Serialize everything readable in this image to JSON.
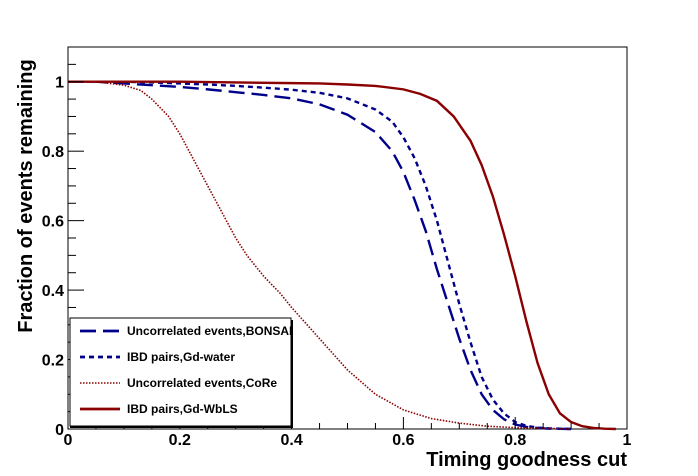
{
  "chart_data": {
    "type": "line",
    "title": "",
    "xlabel": "Timing goodness cut",
    "ylabel": "Fraction of events remaining",
    "xlim": [
      0,
      1
    ],
    "ylim": [
      0,
      1.1
    ],
    "x_ticks": [
      0,
      0.2,
      0.4,
      0.6,
      0.8,
      1
    ],
    "x_tick_labels": [
      "0",
      "0.2",
      "0.4",
      "0.6",
      "0.8",
      "1"
    ],
    "y_ticks": [
      0,
      0.2,
      0.4,
      0.6,
      0.8,
      1
    ],
    "y_tick_labels": [
      "0",
      "0.2",
      "0.4",
      "0.6",
      "0.8",
      "1"
    ],
    "grid": false,
    "legend_position": "bottom-left",
    "series": [
      {
        "name": "Uncorrelated events,BONSAI",
        "color": "#00008b",
        "style": "long-dash",
        "x": [
          0,
          0.05,
          0.1,
          0.15,
          0.2,
          0.25,
          0.3,
          0.35,
          0.4,
          0.45,
          0.5,
          0.55,
          0.58,
          0.6,
          0.62,
          0.64,
          0.66,
          0.68,
          0.7,
          0.72,
          0.74,
          0.76,
          0.78,
          0.8,
          0.82,
          0.84,
          0.86,
          0.88,
          0.9
        ],
        "y": [
          1.0,
          1.0,
          0.995,
          0.99,
          0.985,
          0.978,
          0.97,
          0.962,
          0.952,
          0.935,
          0.905,
          0.855,
          0.8,
          0.74,
          0.66,
          0.57,
          0.46,
          0.36,
          0.26,
          0.17,
          0.1,
          0.055,
          0.028,
          0.013,
          0.006,
          0.003,
          0.001,
          0.0005,
          0
        ]
      },
      {
        "name": "IBD pairs,Gd-water",
        "color": "#00008b",
        "style": "short-dash",
        "x": [
          0,
          0.05,
          0.1,
          0.15,
          0.2,
          0.25,
          0.3,
          0.35,
          0.4,
          0.45,
          0.5,
          0.55,
          0.58,
          0.6,
          0.62,
          0.64,
          0.66,
          0.68,
          0.7,
          0.72,
          0.74,
          0.76,
          0.78,
          0.8,
          0.82,
          0.84,
          0.86,
          0.88,
          0.9
        ],
        "y": [
          1.0,
          1.0,
          1.0,
          0.998,
          0.995,
          0.992,
          0.988,
          0.983,
          0.977,
          0.968,
          0.952,
          0.92,
          0.885,
          0.84,
          0.78,
          0.7,
          0.6,
          0.48,
          0.36,
          0.25,
          0.15,
          0.085,
          0.045,
          0.02,
          0.009,
          0.004,
          0.002,
          0.001,
          0
        ]
      },
      {
        "name": "Uncorrelated events,CoRe",
        "color": "#8b0000",
        "style": "dotted",
        "x": [
          0,
          0.05,
          0.1,
          0.13,
          0.15,
          0.18,
          0.2,
          0.22,
          0.25,
          0.28,
          0.3,
          0.32,
          0.35,
          0.38,
          0.4,
          0.45,
          0.5,
          0.55,
          0.6,
          0.65,
          0.7,
          0.75,
          0.8,
          0.85,
          0.9
        ],
        "y": [
          1.0,
          1.0,
          0.99,
          0.975,
          0.95,
          0.9,
          0.85,
          0.79,
          0.7,
          0.61,
          0.55,
          0.5,
          0.44,
          0.39,
          0.35,
          0.26,
          0.17,
          0.1,
          0.055,
          0.03,
          0.017,
          0.008,
          0.004,
          0.002,
          0
        ]
      },
      {
        "name": "IBD pairs,Gd-WbLS",
        "color": "#8b0000",
        "style": "solid",
        "x": [
          0,
          0.1,
          0.2,
          0.3,
          0.4,
          0.45,
          0.5,
          0.55,
          0.6,
          0.63,
          0.66,
          0.69,
          0.72,
          0.74,
          0.76,
          0.78,
          0.8,
          0.82,
          0.84,
          0.86,
          0.88,
          0.9,
          0.92,
          0.94,
          0.96,
          0.98
        ],
        "y": [
          1.0,
          1.0,
          1.0,
          0.998,
          0.996,
          0.995,
          0.992,
          0.988,
          0.978,
          0.965,
          0.945,
          0.9,
          0.83,
          0.76,
          0.67,
          0.56,
          0.44,
          0.31,
          0.19,
          0.1,
          0.045,
          0.02,
          0.008,
          0.003,
          0.001,
          0
        ]
      }
    ]
  }
}
